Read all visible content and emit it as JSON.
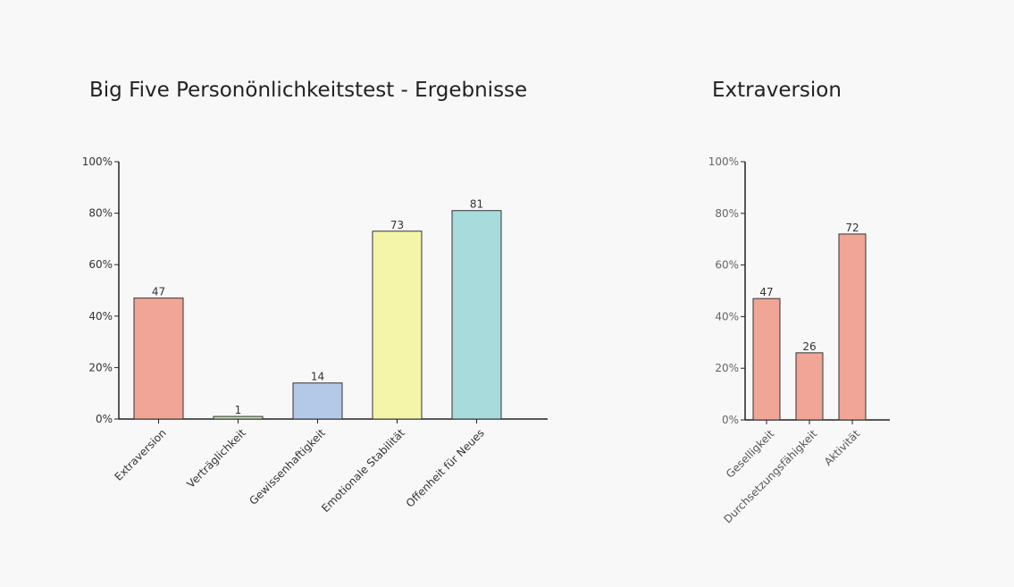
{
  "chart_data": [
    {
      "type": "bar",
      "title": "Big Five Personönlichkeitstest - Ergebnisse",
      "categories": [
        "Extraversion",
        "Verträglichkeit",
        "Gewissenhaftigkeit",
        "Emotionale Stabilität",
        "Offenheit für Neues"
      ],
      "values": [
        47,
        1,
        14,
        73,
        81
      ],
      "colors": [
        "#f0a596",
        "#c5e3b5",
        "#b4c8e8",
        "#f4f5a9",
        "#a8dbdc"
      ],
      "ylim": [
        0,
        100
      ],
      "y_ticks": [
        "0%",
        "20%",
        "40%",
        "60%",
        "80%",
        "100%"
      ],
      "xlabel": "",
      "ylabel": "",
      "grid": false
    },
    {
      "type": "bar",
      "title": "Extraversion",
      "categories": [
        "Geselligkeit",
        "Durchsetzungsfähigkeit",
        "Aktivität"
      ],
      "values": [
        47,
        26,
        72
      ],
      "colors": [
        "#f0a596",
        "#f0a596",
        "#f0a596"
      ],
      "ylim": [
        0,
        100
      ],
      "y_ticks": [
        "0%",
        "20%",
        "40%",
        "60%",
        "80%",
        "100%"
      ],
      "xlabel": "",
      "ylabel": "",
      "grid": false
    }
  ]
}
